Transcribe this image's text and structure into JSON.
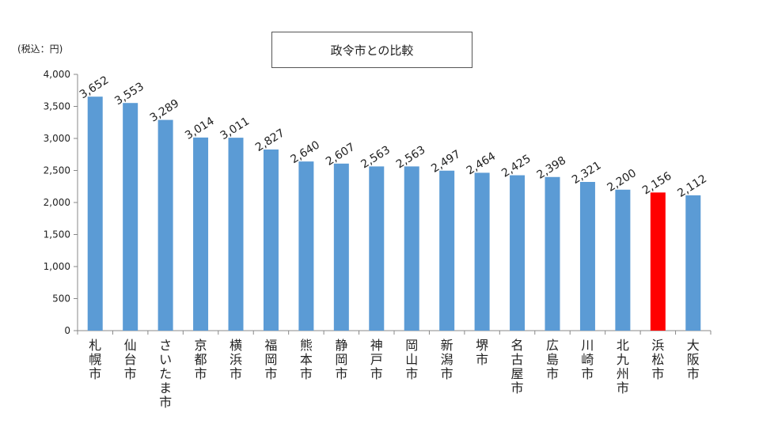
{
  "chart_data": {
    "type": "bar",
    "title": "政令市との比較",
    "unit_label": "(税込：円)",
    "categories": [
      "札幌市",
      "仙台市",
      "さいたま市",
      "京都市",
      "横浜市",
      "福岡市",
      "熊本市",
      "静岡市",
      "神戸市",
      "岡山市",
      "新潟市",
      "堺市",
      "名古屋市",
      "広島市",
      "川崎市",
      "北九州市",
      "浜松市",
      "大阪市"
    ],
    "series": [
      {
        "values": [
          3652,
          3553,
          3289,
          3014,
          3011,
          2827,
          2640,
          2607,
          2563,
          2563,
          2497,
          2464,
          2425,
          2398,
          2321,
          2200,
          2156,
          2112
        ]
      }
    ],
    "data_labels": [
      "3,652",
      "3,553",
      "3,289",
      "3,014",
      "3,011",
      "2,827",
      "2,640",
      "2,607",
      "2,563",
      "2,563",
      "2,497",
      "2,464",
      "2,425",
      "2,398",
      "2,321",
      "2,200",
      "2,156",
      "2,112"
    ],
    "yticks": [
      "0",
      "500",
      "1,000",
      "1,500",
      "2,000",
      "2,500",
      "3,000",
      "3,500",
      "4,000"
    ],
    "ylim": [
      0,
      4000
    ],
    "grid": false,
    "legend": "none",
    "colors": {
      "default": "#5b9bd5",
      "highlight": "#ff0000"
    },
    "highlight_category": "浜松市"
  }
}
